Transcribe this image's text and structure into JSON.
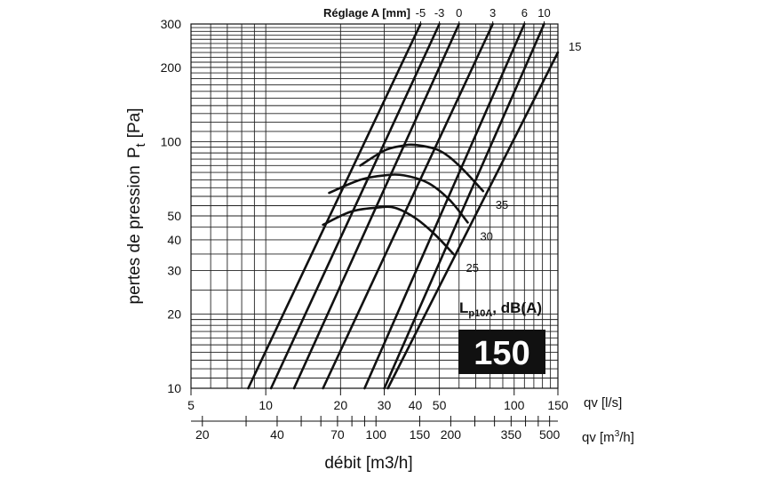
{
  "chart_data": {
    "type": "line",
    "title": "",
    "subtitle": "",
    "ylabel": "pertes de pression",
    "ylabel_symbol": "P",
    "ylabel_subscript": "t",
    "ylabel_unit": "[Pa]",
    "y_scale": "log",
    "ylim": [
      10,
      300
    ],
    "y_ticks": [
      10,
      20,
      30,
      40,
      50,
      100,
      200,
      300
    ],
    "x_scale": "log",
    "x_ls_range": [
      5,
      150
    ],
    "x_ls_ticks": [
      5,
      10,
      20,
      30,
      40,
      50,
      100,
      150
    ],
    "x_ls_unit": "qv [l/s]",
    "x_m3h_ticks": [
      20,
      40,
      70,
      100,
      150,
      200,
      350,
      500
    ],
    "x_m3h_unit_main": "qv [m",
    "x_m3h_unit_sup": "3",
    "x_m3h_unit_end": "/h]",
    "xlabel": "débit [m3/h]",
    "grid": true,
    "top_axis_title": "Réglage A [mm]",
    "series": [
      {
        "name": "-5",
        "x": [
          8.5,
          42
        ],
        "y": [
          10,
          300
        ]
      },
      {
        "name": "-3",
        "x": [
          10.5,
          50
        ],
        "y": [
          10,
          300
        ]
      },
      {
        "name": "0",
        "x": [
          13,
          60
        ],
        "y": [
          10,
          300
        ]
      },
      {
        "name": "3",
        "x": [
          17,
          82
        ],
        "y": [
          10,
          300
        ]
      },
      {
        "name": "6",
        "x": [
          25,
          110
        ],
        "y": [
          10,
          300
        ]
      },
      {
        "name": "10",
        "x": [
          30,
          132
        ],
        "y": [
          10,
          300
        ]
      },
      {
        "name": "15",
        "x": [
          31,
          150
        ],
        "y": [
          10,
          230
        ]
      }
    ],
    "sound_curves": [
      {
        "label": "35",
        "x": [
          24,
          30,
          35,
          40,
          50,
          60,
          75
        ],
        "y": [
          80,
          92,
          96,
          97,
          92,
          80,
          63
        ]
      },
      {
        "label": "30",
        "x": [
          18,
          24,
          30,
          36,
          45,
          55,
          65
        ],
        "y": [
          62,
          70,
          73,
          73,
          68,
          58,
          47
        ]
      },
      {
        "label": "25",
        "x": [
          17,
          22,
          28,
          33,
          40,
          48,
          57
        ],
        "y": [
          46,
          52,
          54,
          54,
          49,
          42,
          35
        ]
      }
    ],
    "lp_label_main": "L",
    "lp_label_sub": "p10A",
    "lp_label_unit": ", dB(A)",
    "size_badge": "150"
  }
}
